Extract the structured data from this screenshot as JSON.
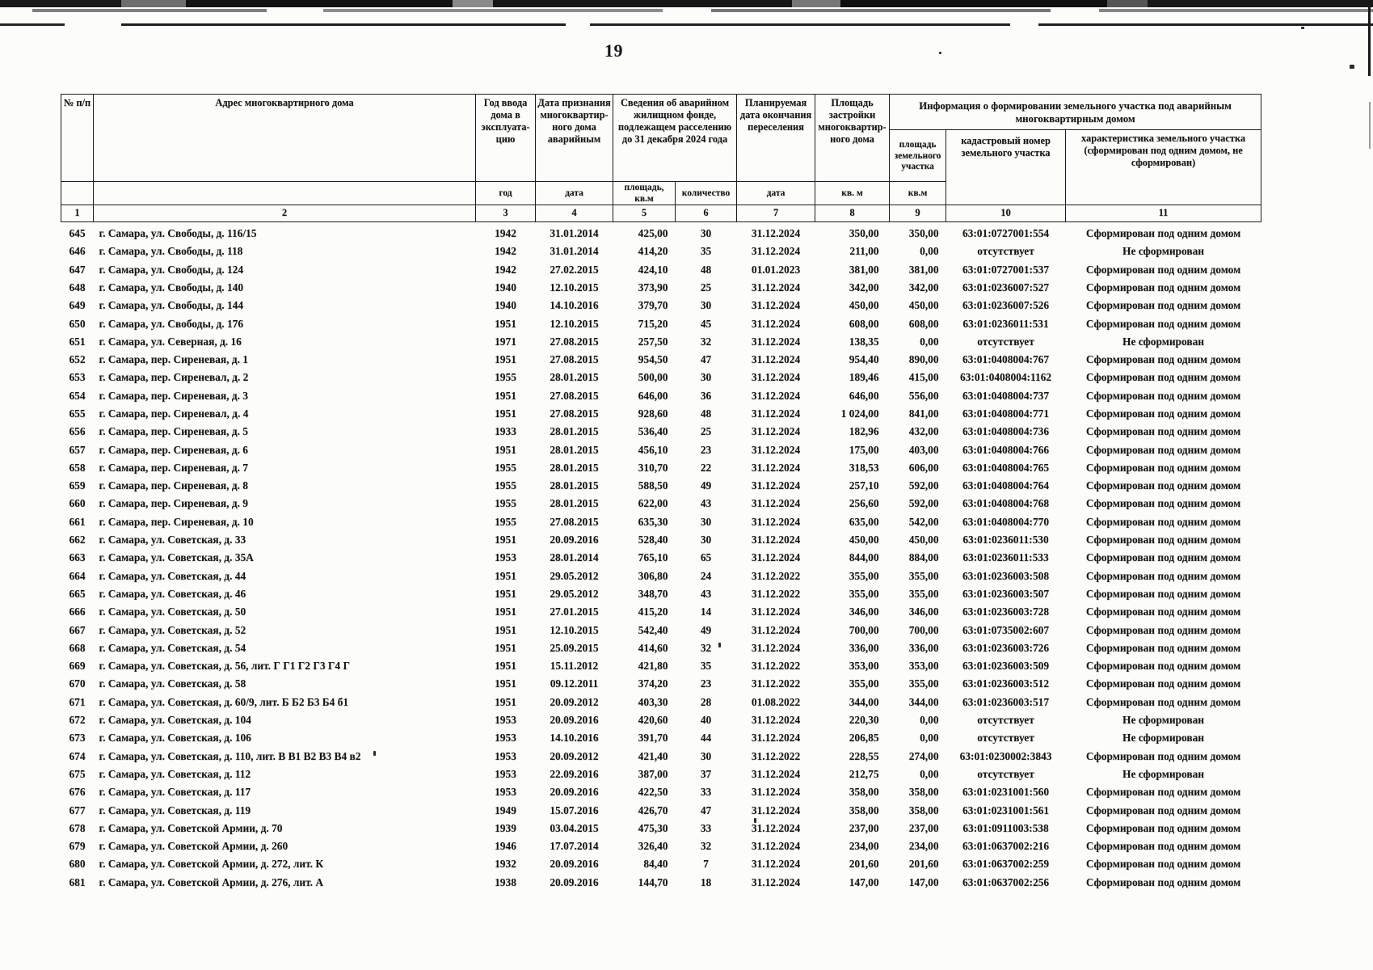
{
  "page_number": "19",
  "ink_color": "#161616",
  "table": {
    "group_headers": {
      "emergency_fund": "Сведения об аварийном жилищном фонде, подлежащем расселению до 31 декабря 2024 года",
      "land_info": "Информация о формировании земельного участка под аварийным многоквартирным домом"
    },
    "headers": {
      "num": "№ п/п",
      "address": "Адрес многоквартирного дома",
      "year": "Год ввода дома в эксплуата- цию",
      "date_recognized": "Дата признания многоквартир- ного дома аварийным",
      "planned_date": "Планируемая дата окончания переселения",
      "building_area": "Площадь застройки многоквартир- ного дома",
      "land_area": "площадь земельного участка",
      "cadastral": "кадастровый номер земельного участка",
      "characteristic": "характеристика земельного участка (сформирован под одним домом, не сформирован)"
    },
    "units": {
      "year": "год",
      "date": "дата",
      "area": "площадь, кв.м",
      "count": "количество",
      "date2": "дата",
      "sqm": "кв. м",
      "sqm2": "кв.м"
    },
    "column_numbers": [
      "1",
      "2",
      "3",
      "4",
      "5",
      "6",
      "7",
      "8",
      "9",
      "10",
      "11"
    ],
    "rows": [
      [
        "645",
        "г. Самара, ул. Свободы, д. 116/15",
        "1942",
        "31.01.2014",
        "425,00",
        "30",
        "31.12.2024",
        "350,00",
        "350,00",
        "63:01:0727001:554",
        "Сформирован под одним домом"
      ],
      [
        "646",
        "г. Самара, ул. Свободы, д. 118",
        "1942",
        "31.01.2014",
        "414,20",
        "35",
        "31.12.2024",
        "211,00",
        "0,00",
        "отсутствует",
        "Не сформирован"
      ],
      [
        "647",
        "г. Самара, ул. Свободы, д. 124",
        "1942",
        "27.02.2015",
        "424,10",
        "48",
        "01.01.2023",
        "381,00",
        "381,00",
        "63:01:0727001:537",
        "Сформирован под одним домом"
      ],
      [
        "648",
        "г. Самара, ул. Свободы, д. 140",
        "1940",
        "12.10.2015",
        "373,90",
        "25",
        "31.12.2024",
        "342,00",
        "342,00",
        "63:01:0236007:527",
        "Сформирован под одним домом"
      ],
      [
        "649",
        "г. Самара, ул. Свободы, д. 144",
        "1940",
        "14.10.2016",
        "379,70",
        "30",
        "31.12.2024",
        "450,00",
        "450,00",
        "63:01:0236007:526",
        "Сформирован под одним домом"
      ],
      [
        "650",
        "г. Самара, ул. Свободы, д. 176",
        "1951",
        "12.10.2015",
        "715,20",
        "45",
        "31.12.2024",
        "608,00",
        "608,00",
        "63:01:0236011:531",
        "Сформирован под одним домом"
      ],
      [
        "651",
        "г. Самара, ул. Северная, д. 16",
        "1971",
        "27.08.2015",
        "257,50",
        "32",
        "31.12.2024",
        "138,35",
        "0,00",
        "отсутствует",
        "Не сформирован"
      ],
      [
        "652",
        "г. Самара, пер. Сиреневая, д. 1",
        "1951",
        "27.08.2015",
        "954,50",
        "47",
        "31.12.2024",
        "954,40",
        "890,00",
        "63:01:0408004:767",
        "Сформирован под одним домом"
      ],
      [
        "653",
        "г. Самара, пер. Сиреневал, д. 2",
        "1955",
        "28.01.2015",
        "500,00",
        "30",
        "31.12.2024",
        "189,46",
        "415,00",
        "63:01:0408004:1162",
        "Сформирован под одним домом"
      ],
      [
        "654",
        "г. Самара, пер. Сиреневая, д. 3",
        "1951",
        "27.08.2015",
        "646,00",
        "36",
        "31.12.2024",
        "646,00",
        "556,00",
        "63:01:0408004:737",
        "Сформирован под одним домом"
      ],
      [
        "655",
        "г. Самара, пер. Сиреневал, д. 4",
        "1951",
        "27.08.2015",
        "928,60",
        "48",
        "31.12.2024",
        "1 024,00",
        "841,00",
        "63:01:0408004:771",
        "Сформирован под одним домом"
      ],
      [
        "656",
        "г. Самара, пер. Сиреневая, д. 5",
        "1933",
        "28.01.2015",
        "536,40",
        "25",
        "31.12.2024",
        "182,96",
        "432,00",
        "63:01:0408004:736",
        "Сформирован под одним домом"
      ],
      [
        "657",
        "г. Самара, пер. Сиреневая, д. 6",
        "1951",
        "28.01.2015",
        "456,10",
        "23",
        "31.12.2024",
        "175,00",
        "403,00",
        "63:01:0408004:766",
        "Сформирован под одним домом"
      ],
      [
        "658",
        "г. Самара, пер. Сиреневая, д. 7",
        "1955",
        "28.01.2015",
        "310,70",
        "22",
        "31.12.2024",
        "318,53",
        "606,00",
        "63:01:0408004:765",
        "Сформирован под одним домом"
      ],
      [
        "659",
        "г. Самара, пер. Сиреневая, д. 8",
        "1955",
        "28.01.2015",
        "588,50",
        "49",
        "31.12.2024",
        "257,10",
        "592,00",
        "63:01:0408004:764",
        "Сформирован под одним домом"
      ],
      [
        "660",
        "г. Самара, пер. Сиреневая, д. 9",
        "1955",
        "28.01.2015",
        "622,00",
        "43",
        "31.12.2024",
        "256,60",
        "592,00",
        "63:01:0408004:768",
        "Сформирован под одним домом"
      ],
      [
        "661",
        "г. Самара, пер. Сиреневая, д. 10",
        "1955",
        "27.08.2015",
        "635,30",
        "30",
        "31.12.2024",
        "635,00",
        "542,00",
        "63:01:0408004:770",
        "Сформирован под одним домом"
      ],
      [
        "662",
        "г. Самара, ул. Советская, д. 33",
        "1951",
        "20.09.2016",
        "528,40",
        "30",
        "31.12.2024",
        "450,00",
        "450,00",
        "63:01:0236011:530",
        "Сформирован под одним домом"
      ],
      [
        "663",
        "г. Самара, ул. Советская, д. 35А",
        "1953",
        "28.01.2014",
        "765,10",
        "65",
        "31.12.2024",
        "844,00",
        "884,00",
        "63:01:0236011:533",
        "Сформирован под одним домом"
      ],
      [
        "664",
        "г. Самара, ул. Советская, д. 44",
        "1951",
        "29.05.2012",
        "306,80",
        "24",
        "31.12.2022",
        "355,00",
        "355,00",
        "63:01:0236003:508",
        "Сформирован под одним домом"
      ],
      [
        "665",
        "г. Самара, ул. Советская, д. 46",
        "1951",
        "29.05.2012",
        "348,70",
        "43",
        "31.12.2022",
        "355,00",
        "355,00",
        "63:01:0236003:507",
        "Сформирован под одним домом"
      ],
      [
        "666",
        "г. Самара, ул. Советская, д. 50",
        "1951",
        "27.01.2015",
        "415,20",
        "14",
        "31.12.2024",
        "346,00",
        "346,00",
        "63:01:0236003:728",
        "Сформирован под одним домом"
      ],
      [
        "667",
        "г. Самара, ул. Советская, д. 52",
        "1951",
        "12.10.2015",
        "542,40",
        "49",
        "31.12.2024",
        "700,00",
        "700,00",
        "63:01:0735002:607",
        "Сформирован под одним домом"
      ],
      [
        "668",
        "г. Самара, ул. Советская, д. 54",
        "1951",
        "25.09.2015",
        "414,60",
        "32",
        "31.12.2024",
        "336,00",
        "336,00",
        "63:01:0236003:726",
        "Сформирован под одним домом"
      ],
      [
        "669",
        "г. Самара, ул. Советская, д. 56, лит. Г Г1 Г2 Г3 Г4 Г",
        "1951",
        "15.11.2012",
        "421,80",
        "35",
        "31.12.2022",
        "353,00",
        "353,00",
        "63:01:0236003:509",
        "Сформирован под одним домом"
      ],
      [
        "670",
        "г. Самара, ул. Советская, д. 58",
        "1951",
        "09.12.2011",
        "374,20",
        "23",
        "31.12.2022",
        "355,00",
        "355,00",
        "63:01:0236003:512",
        "Сформирован под одним домом"
      ],
      [
        "671",
        "г. Самара, ул. Советская, д. 60/9, лит. Б Б2 Б3 Б4 б1",
        "1951",
        "20.09.2012",
        "403,30",
        "28",
        "01.08.2022",
        "344,00",
        "344,00",
        "63:01:0236003:517",
        "Сформирован под одним домом"
      ],
      [
        "672",
        "г. Самара, ул. Советская, д. 104",
        "1953",
        "20.09.2016",
        "420,60",
        "40",
        "31.12.2024",
        "220,30",
        "0,00",
        "отсутствует",
        "Не сформирован"
      ],
      [
        "673",
        "г. Самара, ул. Советская, д. 106",
        "1953",
        "14.10.2016",
        "391,70",
        "44",
        "31.12.2024",
        "206,85",
        "0,00",
        "отсутствует",
        "Не сформирован"
      ],
      [
        "674",
        "г. Самара, ул. Советская, д. 110, лит. В В1 В2 В3 В4 в2",
        "1953",
        "20.09.2012",
        "421,40",
        "30",
        "31.12.2022",
        "228,55",
        "274,00",
        "63:01:0230002:3843",
        "Сформирован под одним домом"
      ],
      [
        "675",
        "г. Самара, ул. Советская, д. 112",
        "1953",
        "22.09.2016",
        "387,00",
        "37",
        "31.12.2024",
        "212,75",
        "0,00",
        "отсутствует",
        "Не сформирован"
      ],
      [
        "676",
        "г. Самара, ул. Советская, д. 117",
        "1953",
        "20.09.2016",
        "422,50",
        "33",
        "31.12.2024",
        "358,00",
        "358,00",
        "63:01:0231001:560",
        "Сформирован под одним домом"
      ],
      [
        "677",
        "г. Самара, ул. Советская, д. 119",
        "1949",
        "15.07.2016",
        "426,70",
        "47",
        "31.12.2024",
        "358,00",
        "358,00",
        "63:01:0231001:561",
        "Сформирован под одним домом"
      ],
      [
        "678",
        "г. Самара, ул. Советской Армии, д. 70",
        "1939",
        "03.04.2015",
        "475,30",
        "33",
        "31.12.2024",
        "237,00",
        "237,00",
        "63:01:0911003:538",
        "Сформирован под одним домом"
      ],
      [
        "679",
        "г. Самара, ул. Советской Армии, д. 260",
        "1946",
        "17.07.2014",
        "326,40",
        "32",
        "31.12.2024",
        "234,00",
        "234,00",
        "63:01:0637002:216",
        "Сформирован под одним домом"
      ],
      [
        "680",
        "г. Самара, ул. Советской Армии, д. 272, лит. К",
        "1932",
        "20.09.2016",
        "84,40",
        "7",
        "31.12.2024",
        "201,60",
        "201,60",
        "63:01:0637002:259",
        "Сформирован под одним домом"
      ],
      [
        "681",
        "г. Самара, ул. Советской Армии, д. 276, лит. А",
        "1938",
        "20.09.2016",
        "144,70",
        "18",
        "31.12.2024",
        "147,00",
        "147,00",
        "63:01:0637002:256",
        "Сформирован под одним домом"
      ]
    ]
  }
}
